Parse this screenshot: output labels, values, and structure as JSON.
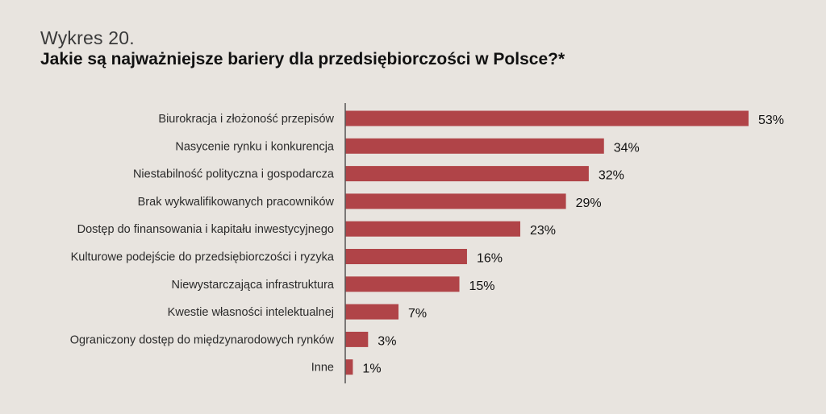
{
  "header": {
    "subtitle": "Wykres 20.",
    "title": "Jakie są najważniejsze bariery dla przedsiębiorczości w Polsce?*"
  },
  "colors": {
    "bar": "#b04448",
    "axis": "#555555",
    "background": "#e8e4df"
  },
  "chart_data": {
    "type": "bar",
    "orientation": "horizontal",
    "title": "Jakie są najważniejsze bariery dla przedsiębiorczości w Polsce?*",
    "categories": [
      "Biurokracja i złożoność przepisów",
      "Nasycenie rynku i konkurencja",
      "Niestabilność polityczna i gospodarcza",
      "Brak wykwalifikowanych pracowników",
      "Dostęp do finansowania i kapitału inwestycyjnego",
      "Kulturowe podejście do przedsiębiorczości i ryzyka",
      "Niewystarczająca infrastruktura",
      "Kwestie własności intelektualnej",
      "Ograniczony dostęp do międzynarodowych rynków",
      "Inne"
    ],
    "values": [
      53,
      34,
      32,
      29,
      23,
      16,
      15,
      7,
      3,
      1
    ],
    "value_labels": [
      "53%",
      "34%",
      "32%",
      "29%",
      "23%",
      "16%",
      "15%",
      "7%",
      "3%",
      "1%"
    ],
    "xlim": [
      0,
      53
    ],
    "grid": false,
    "legend": "none"
  }
}
